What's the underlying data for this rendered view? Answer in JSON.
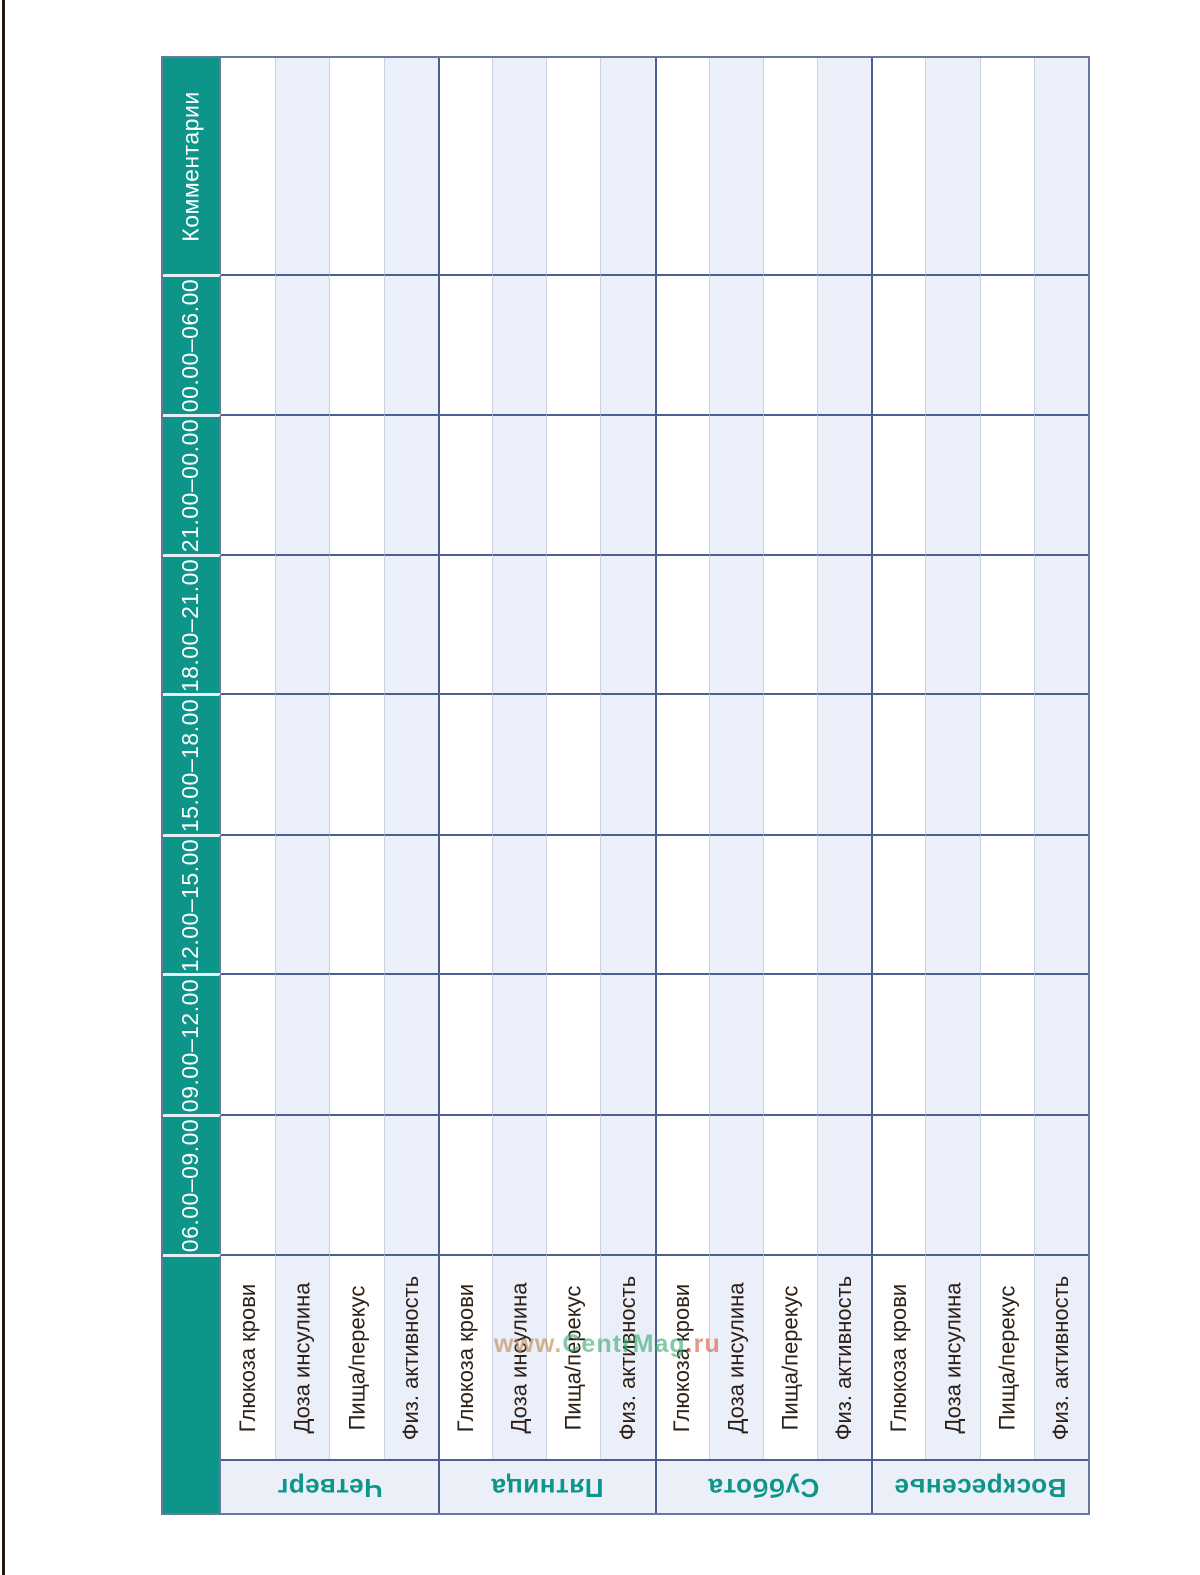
{
  "page": {
    "watermark": {
      "www": "www.",
      "name": "CentrMag",
      "ru": ".ru"
    }
  },
  "table": {
    "header_column": [
      "Комментарии",
      "00.00–06.00",
      "21.00–00.00",
      "18.00–21.00",
      "15.00–18.00",
      "12.00–15.00",
      "09.00–12.00",
      "06.00–09.00"
    ],
    "metrics": [
      "Глюкоза крови",
      "Доза инсулина",
      "Пища/перекус",
      "Физ. активность"
    ],
    "days": [
      "Четверг",
      "Пятница",
      "Суббота",
      "Воскресенье"
    ]
  },
  "colors": {
    "teal": "#0d9589",
    "stripe": "#eaeffa",
    "day_band": "#ebeff8",
    "border_major": "#4d5f90",
    "border_minor": "#c9d1e3",
    "outer_border": "#68779f",
    "header_text": "#ffffff",
    "metric_text": "#2e2015",
    "day_text": "#0d9589",
    "scan_edge": "#2a140e"
  }
}
